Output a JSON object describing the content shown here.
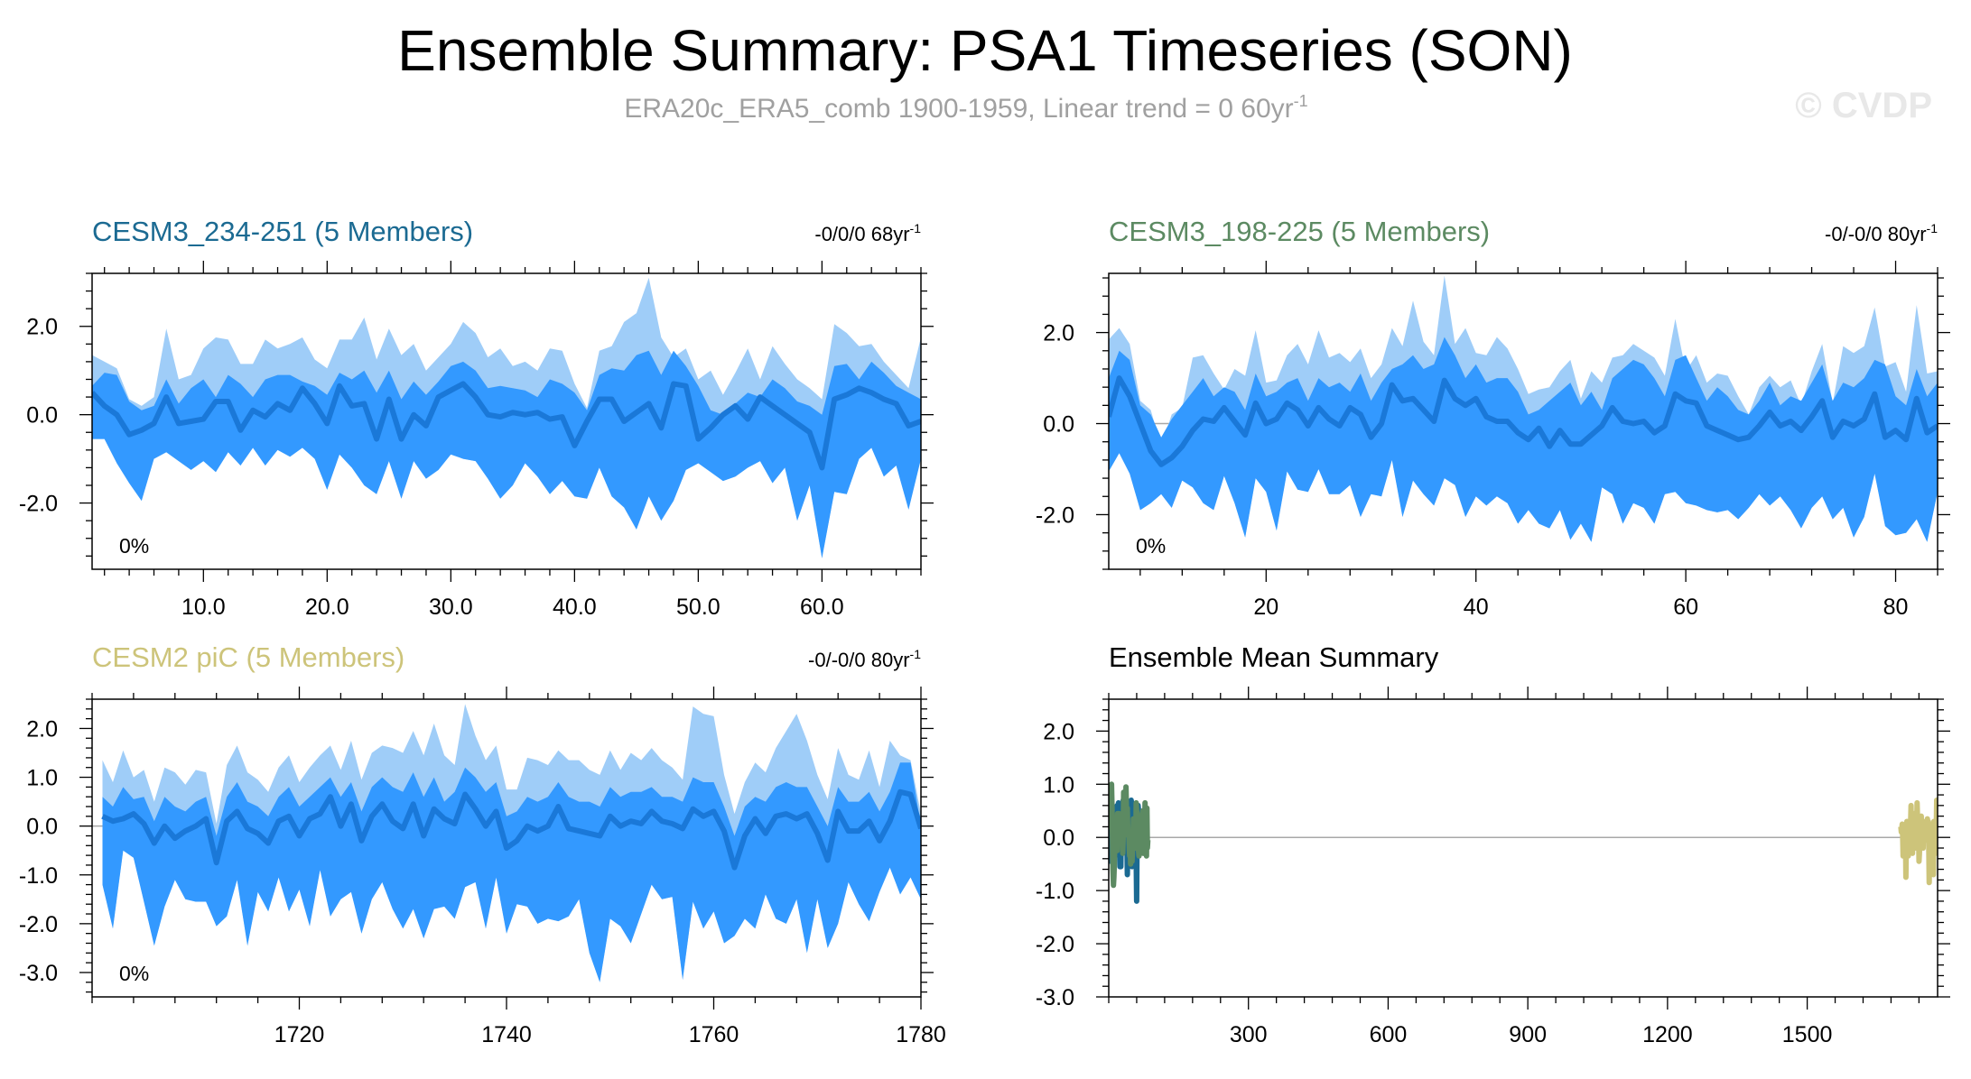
{
  "figure": {
    "title": "Ensemble Summary: PSA1 Timeseries (SON)",
    "subtitle": "ERA20c_ERA5_comb 1900-1959, Linear trend = 0 60yr",
    "subtitle_sup": "-1",
    "credit": "© CVDP"
  },
  "colors": {
    "band_outer": "#9fcdf8",
    "band_inner": "#3399ff",
    "ens_mean": "#1a78d8",
    "zero_line": "#a8a8a8",
    "cesm3_234": "#1b6a92",
    "cesm3_198": "#5c8a62",
    "cesm2_pic": "#cdc47a"
  },
  "chart_data": [
    {
      "id": "p1",
      "type": "area",
      "title": "CESM3_234-251 (5 Members)",
      "title_color": "#1b6a92",
      "trend": "-0/0/0 68yr",
      "trend_sup": "-1",
      "percent": "0%",
      "xlim": [
        1,
        68
      ],
      "ylim": [
        -3.5,
        3.2
      ],
      "xticks": [
        10,
        20,
        30,
        40,
        50,
        60
      ],
      "xticklabels": [
        "10.0",
        "20.0",
        "30.0",
        "40.0",
        "50.0",
        "60.0"
      ],
      "yticks": [
        2,
        0,
        -2
      ],
      "yticklabels": [
        "2.0",
        "0.0",
        "-2.0"
      ],
      "x_start": 1,
      "max": [
        1.35,
        1.2,
        1.05,
        0.35,
        0.2,
        0.4,
        1.95,
        0.8,
        0.9,
        1.5,
        1.75,
        1.7,
        1.15,
        1.15,
        1.7,
        1.5,
        1.6,
        1.75,
        1.25,
        1.05,
        1.7,
        1.7,
        2.2,
        1.25,
        1.95,
        1.35,
        1.6,
        1.0,
        1.3,
        1.6,
        2.1,
        1.85,
        1.3,
        1.5,
        1.1,
        1.2,
        1.0,
        1.5,
        1.45,
        0.7,
        0.15,
        1.45,
        1.55,
        2.1,
        2.3,
        3.1,
        1.75,
        1.3,
        1.5,
        0.8,
        1.0,
        0.45,
        0.95,
        1.5,
        0.8,
        1.55,
        1.15,
        0.8,
        0.6,
        0.35,
        2.05,
        1.85,
        1.55,
        1.6,
        1.2,
        0.9,
        0.6,
        1.75
      ],
      "up": [
        0.65,
        0.95,
        0.9,
        0.3,
        0.1,
        0.2,
        0.8,
        0.25,
        0.6,
        0.8,
        0.4,
        0.9,
        0.7,
        0.4,
        0.8,
        0.9,
        0.9,
        0.75,
        0.65,
        0.45,
        0.95,
        0.8,
        1.0,
        0.5,
        1.0,
        0.35,
        0.75,
        0.45,
        0.75,
        1.1,
        1.2,
        1.0,
        0.6,
        0.65,
        0.6,
        0.55,
        0.4,
        0.8,
        0.7,
        0.5,
        0.1,
        0.9,
        1.05,
        1.0,
        1.35,
        1.45,
        0.9,
        1.45,
        1.1,
        0.65,
        0.1,
        0.0,
        0.25,
        0.5,
        0.4,
        0.8,
        0.6,
        0.3,
        0.2,
        0.0,
        1.1,
        1.15,
        0.8,
        1.2,
        0.95,
        0.65,
        0.5,
        0.35
      ],
      "mean": [
        0.5,
        0.2,
        0.0,
        -0.45,
        -0.35,
        -0.2,
        0.4,
        -0.2,
        -0.15,
        -0.1,
        0.3,
        0.3,
        -0.35,
        0.1,
        -0.05,
        0.25,
        0.1,
        0.6,
        0.25,
        -0.2,
        0.65,
        0.2,
        0.25,
        -0.55,
        0.35,
        -0.55,
        0.0,
        -0.25,
        0.4,
        0.55,
        0.7,
        0.4,
        0.0,
        -0.05,
        0.05,
        0.0,
        0.05,
        -0.1,
        -0.05,
        -0.7,
        -0.15,
        0.35,
        0.35,
        -0.15,
        0.05,
        0.25,
        -0.3,
        0.7,
        0.65,
        -0.55,
        -0.3,
        0.0,
        0.2,
        -0.1,
        0.4,
        0.2,
        0.0,
        -0.2,
        -0.4,
        -1.2,
        0.35,
        0.45,
        0.6,
        0.5,
        0.35,
        0.25,
        -0.25,
        -0.15
      ],
      "low": [
        -0.2,
        -0.3,
        -0.6,
        -0.8,
        -0.6,
        -0.5,
        -0.4,
        -0.6,
        -0.6,
        -0.8,
        -0.5,
        -0.2,
        -0.8,
        -0.4,
        -0.6,
        -0.3,
        -0.5,
        -0.1,
        -0.4,
        -0.6,
        -0.2,
        -0.4,
        -0.5,
        -0.9,
        -0.5,
        -1.0,
        -0.6,
        -0.8,
        -0.5,
        -0.3,
        -0.2,
        -0.3,
        -0.6,
        -0.7,
        -0.5,
        -0.6,
        -0.5,
        -0.7,
        -0.6,
        -1.1,
        -0.6,
        -0.4,
        -0.5,
        -0.8,
        -0.7,
        -0.8,
        -1.0,
        -0.5,
        -0.5,
        -0.9,
        -1.0,
        -0.8,
        -0.7,
        -0.8,
        -0.5,
        -0.6,
        -0.7,
        -0.8,
        -1.0,
        -1.6,
        -0.6,
        -0.5,
        -0.4,
        -0.5,
        -0.6,
        -0.7,
        -1.0,
        -0.9
      ],
      "min": [
        -0.55,
        -0.55,
        -1.1,
        -1.55,
        -1.95,
        -1.0,
        -0.85,
        -1.05,
        -1.25,
        -1.05,
        -1.3,
        -0.85,
        -1.15,
        -0.75,
        -1.15,
        -0.8,
        -0.95,
        -0.75,
        -1.0,
        -1.7,
        -0.9,
        -1.2,
        -1.6,
        -1.8,
        -1.05,
        -1.9,
        -1.05,
        -1.45,
        -1.25,
        -0.9,
        -1.0,
        -1.05,
        -1.45,
        -1.9,
        -1.6,
        -1.1,
        -1.4,
        -1.8,
        -1.5,
        -1.85,
        -1.9,
        -1.2,
        -1.85,
        -2.1,
        -2.6,
        -1.85,
        -2.4,
        -1.95,
        -1.25,
        -1.1,
        -1.3,
        -1.5,
        -1.4,
        -1.2,
        -1.05,
        -1.55,
        -1.2,
        -2.4,
        -1.6,
        -3.25,
        -1.75,
        -1.8,
        -1.0,
        -0.75,
        -1.4,
        -1.15,
        -2.15,
        -1.0
      ]
    },
    {
      "id": "p2",
      "type": "area",
      "title": "CESM3_198-225 (5 Members)",
      "title_color": "#5c8a62",
      "trend": "-0/-0/0 80yr",
      "trend_sup": "-1",
      "percent": "0%",
      "xlim": [
        5,
        84
      ],
      "ylim": [
        -3.2,
        3.3
      ],
      "xticks": [
        20,
        40,
        60,
        80
      ],
      "xticklabels": [
        "20",
        "40",
        "60",
        "80"
      ],
      "yticks": [
        2,
        0,
        -2
      ],
      "yticklabels": [
        "2.0",
        "0.0",
        "-2.0"
      ],
      "x_start": 5,
      "max": [
        1.85,
        2.1,
        1.75,
        0.5,
        0.3,
        -0.5,
        0.2,
        0.35,
        1.45,
        1.5,
        1.1,
        0.75,
        1.2,
        1.05,
        2.05,
        0.9,
        0.95,
        1.5,
        1.75,
        1.3,
        2.05,
        1.45,
        1.55,
        1.35,
        1.65,
        1.0,
        1.3,
        2.1,
        1.7,
        2.7,
        1.8,
        1.5,
        3.25,
        1.75,
        2.1,
        1.55,
        1.5,
        1.9,
        1.65,
        1.2,
        0.65,
        0.75,
        0.8,
        1.15,
        1.4,
        0.55,
        1.15,
        0.9,
        1.45,
        1.5,
        1.75,
        1.6,
        1.45,
        1.05,
        2.3,
        1.15,
        1.5,
        0.9,
        1.1,
        1.05,
        0.6,
        0.2,
        0.8,
        1.05,
        0.8,
        0.95,
        0.4,
        1.15,
        1.75,
        0.45,
        1.7,
        1.55,
        1.7,
        2.55,
        1.25,
        1.35,
        0.7,
        2.6,
        1.1,
        1.15
      ],
      "up": [
        1.0,
        1.6,
        1.4,
        0.4,
        0.2,
        -0.3,
        0.1,
        0.4,
        0.7,
        1.0,
        0.6,
        0.8,
        0.7,
        0.3,
        1.1,
        0.6,
        0.7,
        0.9,
        1.0,
        0.5,
        1.0,
        0.8,
        0.9,
        0.7,
        1.1,
        0.5,
        0.9,
        1.2,
        1.3,
        1.5,
        1.2,
        1.3,
        1.9,
        1.5,
        1.0,
        1.3,
        0.9,
        1.0,
        1.0,
        0.7,
        0.2,
        0.3,
        0.5,
        0.7,
        0.9,
        0.4,
        0.7,
        0.3,
        1.0,
        1.2,
        1.4,
        1.3,
        1.0,
        0.6,
        1.4,
        1.5,
        1.0,
        0.5,
        0.8,
        0.6,
        0.3,
        0.2,
        0.5,
        0.9,
        0.4,
        0.6,
        0.5,
        0.9,
        1.3,
        0.5,
        0.9,
        0.8,
        1.0,
        1.4,
        1.3,
        0.6,
        0.4,
        1.2,
        0.6,
        0.9
      ],
      "mean": [
        0.15,
        1.0,
        0.6,
        0.0,
        -0.6,
        -0.9,
        -0.75,
        -0.5,
        -0.15,
        0.1,
        0.05,
        0.35,
        0.05,
        -0.25,
        0.45,
        0.0,
        0.1,
        0.45,
        0.3,
        -0.05,
        0.35,
        0.1,
        -0.05,
        0.35,
        0.2,
        -0.3,
        0.0,
        0.85,
        0.5,
        0.55,
        0.3,
        0.05,
        0.95,
        0.55,
        0.4,
        0.55,
        0.15,
        0.05,
        0.05,
        -0.2,
        -0.35,
        -0.1,
        -0.5,
        -0.15,
        -0.45,
        -0.45,
        -0.25,
        -0.05,
        0.35,
        0.05,
        0.0,
        0.05,
        -0.2,
        -0.05,
        0.65,
        0.5,
        0.45,
        -0.05,
        -0.15,
        -0.25,
        -0.35,
        -0.3,
        -0.05,
        0.25,
        -0.05,
        0.05,
        -0.15,
        0.15,
        0.5,
        -0.3,
        0.05,
        -0.05,
        0.1,
        0.65,
        -0.3,
        -0.15,
        -0.35,
        0.55,
        -0.2,
        -0.05
      ],
      "low": [
        -0.5,
        0.0,
        -0.2,
        -0.6,
        -1.0,
        -1.2,
        -1.0,
        -0.9,
        -0.7,
        -0.5,
        -0.6,
        -0.3,
        -0.5,
        -0.7,
        -0.2,
        -0.5,
        -0.5,
        -0.1,
        -0.3,
        -0.6,
        -0.3,
        -0.5,
        -0.6,
        -0.3,
        -0.4,
        -0.8,
        -0.6,
        0.0,
        -0.2,
        -0.2,
        -0.4,
        -0.6,
        0.0,
        -0.2,
        -0.3,
        -0.2,
        -0.5,
        -0.6,
        -0.6,
        -0.8,
        -0.9,
        -0.7,
        -1.0,
        -0.7,
        -1.0,
        -1.0,
        -0.8,
        -0.6,
        -0.3,
        -0.6,
        -0.6,
        -0.6,
        -0.8,
        -0.6,
        -0.1,
        -0.2,
        -0.3,
        -0.7,
        -0.8,
        -0.9,
        -1.0,
        -0.9,
        -0.7,
        -0.4,
        -0.7,
        -0.6,
        -0.8,
        -0.5,
        -0.2,
        -0.9,
        -0.6,
        -0.7,
        -0.5,
        -0.1,
        -0.9,
        -0.8,
        -1.0,
        -0.2,
        -0.8,
        -0.7
      ],
      "min": [
        -1.05,
        -0.65,
        -1.1,
        -1.9,
        -1.75,
        -1.55,
        -1.85,
        -1.25,
        -1.4,
        -1.75,
        -1.9,
        -1.15,
        -1.75,
        -2.5,
        -1.2,
        -1.5,
        -2.35,
        -1.05,
        -1.45,
        -1.5,
        -1.0,
        -1.55,
        -1.55,
        -1.35,
        -2.05,
        -1.55,
        -1.6,
        -0.8,
        -2.05,
        -1.25,
        -1.55,
        -1.8,
        -1.2,
        -1.35,
        -2.05,
        -1.6,
        -1.8,
        -1.6,
        -1.75,
        -2.2,
        -1.9,
        -2.2,
        -2.3,
        -1.9,
        -2.55,
        -2.2,
        -2.6,
        -1.4,
        -1.55,
        -2.2,
        -1.75,
        -1.85,
        -2.2,
        -1.55,
        -1.5,
        -1.75,
        -1.8,
        -1.9,
        -1.95,
        -1.9,
        -2.1,
        -1.85,
        -1.55,
        -1.8,
        -1.6,
        -1.9,
        -2.3,
        -1.85,
        -1.6,
        -2.1,
        -1.85,
        -2.5,
        -2.05,
        -1.1,
        -2.25,
        -2.45,
        -2.4,
        -2.1,
        -2.6,
        -1.5
      ]
    },
    {
      "id": "p3",
      "type": "area",
      "title": "CESM2 piC (5 Members)",
      "title_color": "#cdc47a",
      "trend": "-0/-0/0 80yr",
      "trend_sup": "-1",
      "percent": "0%",
      "xlim": [
        1700,
        1780
      ],
      "ylim": [
        -3.5,
        2.6
      ],
      "xticks": [
        1720,
        1740,
        1760,
        1780
      ],
      "xticklabels": [
        "1720",
        "1740",
        "1760",
        "1780"
      ],
      "yticks": [
        2,
        1,
        0,
        -1,
        -2,
        -3
      ],
      "yticklabels": [
        "2.0",
        "1.0",
        "0.0",
        "-1.0",
        "-2.0",
        "-3.0"
      ],
      "x_start": 1701,
      "max": [
        1.35,
        0.9,
        1.55,
        1.0,
        1.15,
        0.5,
        1.2,
        1.1,
        0.85,
        1.15,
        1.1,
        0.05,
        1.25,
        1.65,
        1.1,
        0.95,
        0.7,
        1.2,
        1.45,
        0.9,
        1.2,
        1.45,
        1.65,
        1.15,
        1.75,
        0.95,
        1.5,
        1.65,
        1.6,
        1.5,
        1.95,
        1.45,
        2.1,
        1.45,
        1.25,
        2.5,
        1.85,
        1.35,
        1.65,
        0.75,
        0.75,
        1.4,
        1.35,
        1.25,
        1.55,
        1.35,
        1.35,
        1.15,
        1.05,
        1.55,
        1.15,
        1.5,
        1.35,
        1.6,
        1.35,
        1.2,
        0.95,
        2.45,
        2.3,
        2.25,
        1.05,
        0.25,
        0.9,
        1.3,
        1.1,
        1.6,
        1.95,
        2.3,
        1.75,
        1.05,
        0.55,
        1.6,
        1.05,
        0.95,
        1.55,
        0.8,
        1.75,
        1.45,
        1.35,
        0.25
      ],
      "up": [
        0.6,
        0.4,
        0.8,
        0.55,
        0.6,
        0.1,
        0.6,
        0.4,
        0.3,
        0.5,
        0.6,
        -0.2,
        0.6,
        0.9,
        0.5,
        0.4,
        0.2,
        0.6,
        0.8,
        0.4,
        0.6,
        0.8,
        1.0,
        0.6,
        0.9,
        0.3,
        0.8,
        1.0,
        0.8,
        0.7,
        1.1,
        0.6,
        1.0,
        0.5,
        0.7,
        1.2,
        1.0,
        0.7,
        0.9,
        0.2,
        0.3,
        0.6,
        0.5,
        0.6,
        0.9,
        0.6,
        0.5,
        0.5,
        0.4,
        0.8,
        0.6,
        0.7,
        0.7,
        0.8,
        0.6,
        0.6,
        0.5,
        1.0,
        0.9,
        0.9,
        0.4,
        -0.2,
        0.4,
        0.6,
        0.5,
        0.8,
        0.9,
        0.8,
        0.8,
        0.4,
        0.0,
        0.8,
        0.5,
        0.5,
        0.7,
        0.3,
        0.7,
        1.3,
        1.3,
        0.0
      ],
      "mean": [
        0.2,
        0.1,
        0.15,
        0.25,
        0.05,
        -0.35,
        0.0,
        -0.25,
        -0.1,
        0.0,
        0.15,
        -0.75,
        0.1,
        0.3,
        -0.05,
        -0.15,
        -0.35,
        0.1,
        0.2,
        -0.2,
        0.15,
        0.25,
        0.6,
        0.0,
        0.45,
        -0.3,
        0.2,
        0.45,
        0.1,
        -0.05,
        0.45,
        -0.2,
        0.35,
        0.15,
        0.05,
        0.65,
        0.35,
        0.0,
        0.3,
        -0.45,
        -0.3,
        0.0,
        -0.1,
        0.0,
        0.4,
        -0.05,
        -0.1,
        -0.15,
        -0.2,
        0.2,
        0.0,
        0.1,
        0.05,
        0.3,
        0.1,
        0.05,
        -0.05,
        0.35,
        0.2,
        0.3,
        -0.1,
        -0.85,
        -0.2,
        0.15,
        -0.15,
        0.2,
        0.25,
        0.15,
        0.25,
        -0.15,
        -0.7,
        0.3,
        -0.1,
        -0.1,
        0.1,
        -0.3,
        0.1,
        0.7,
        0.65,
        -0.05
      ],
      "low": [
        -0.4,
        -0.5,
        -0.6,
        -0.5,
        -0.9,
        -1.2,
        -0.8,
        -1.1,
        -0.8,
        -0.7,
        -0.5,
        -1.5,
        -0.6,
        -0.5,
        -0.7,
        -1.0,
        -1.2,
        -0.8,
        -0.7,
        -1.0,
        -0.8,
        -0.6,
        -0.4,
        -1.0,
        -0.7,
        -1.3,
        -0.9,
        -0.7,
        -0.8,
        -1.0,
        -0.6,
        -1.3,
        -0.8,
        -1.0,
        -1.2,
        -0.6,
        -0.8,
        -1.0,
        -0.7,
        -1.4,
        -1.3,
        -1.1,
        -1.2,
        -1.0,
        -0.7,
        -1.0,
        -1.1,
        -1.0,
        -1.1,
        -0.8,
        -1.0,
        -0.9,
        -1.0,
        -0.8,
        -1.1,
        -1.1,
        -1.2,
        -0.9,
        -1.1,
        -1.0,
        -1.3,
        -1.8,
        -1.1,
        -0.9,
        -1.1,
        -0.9,
        -0.9,
        -1.0,
        -1.0,
        -1.2,
        -1.7,
        -0.8,
        -1.1,
        -1.2,
        -1.0,
        -1.3,
        -1.0,
        -0.6,
        -0.8,
        -1.4
      ],
      "min": [
        -1.2,
        -2.1,
        -0.5,
        -0.65,
        -1.55,
        -2.45,
        -1.65,
        -1.1,
        -1.5,
        -1.55,
        -1.55,
        -2.05,
        -1.85,
        -1.1,
        -2.45,
        -1.35,
        -1.75,
        -1.05,
        -1.75,
        -1.3,
        -2.05,
        -0.9,
        -1.85,
        -1.5,
        -1.35,
        -2.2,
        -1.5,
        -1.15,
        -1.7,
        -2.1,
        -1.7,
        -2.3,
        -1.7,
        -1.65,
        -1.9,
        -1.25,
        -1.15,
        -2.1,
        -1.05,
        -2.2,
        -1.6,
        -1.65,
        -2.0,
        -1.9,
        -1.95,
        -1.85,
        -1.5,
        -2.6,
        -3.2,
        -1.9,
        -2.05,
        -2.4,
        -1.8,
        -1.2,
        -1.5,
        -1.45,
        -3.15,
        -1.55,
        -2.1,
        -1.75,
        -2.4,
        -2.25,
        -1.9,
        -2.1,
        -1.4,
        -1.9,
        -2.0,
        -1.5,
        -2.6,
        -1.5,
        -2.5,
        -2.0,
        -1.15,
        -1.6,
        -1.95,
        -1.35,
        -0.85,
        -1.4,
        -1.05,
        -1.5
      ]
    },
    {
      "id": "p4",
      "type": "line",
      "title": "Ensemble Mean Summary",
      "title_color": "#000000",
      "xlim": [
        0,
        1780
      ],
      "ylim": [
        -3.0,
        2.6
      ],
      "xticks": [
        300,
        600,
        900,
        1200,
        1500
      ],
      "xticklabels": [
        "300",
        "600",
        "900",
        "1200",
        "1500"
      ],
      "yticks": [
        2,
        1,
        0,
        -1,
        -2,
        -3
      ],
      "yticklabels": [
        "2.0",
        "1.0",
        "0.0",
        "-1.0",
        "-2.0",
        "-3.0"
      ],
      "series": [
        {
          "name": "CESM3_234-251 (5 Members)",
          "color": "#1b6a92",
          "source": "p1",
          "x_offset": 0
        },
        {
          "name": "CESM3_198-225 (5 Members)",
          "color": "#5c8a62",
          "source": "p2",
          "x_offset": 0
        },
        {
          "name": "CESM2 piC (5 Members)",
          "color": "#cdc47a",
          "source": "p3",
          "x_offset": 0
        }
      ]
    }
  ]
}
